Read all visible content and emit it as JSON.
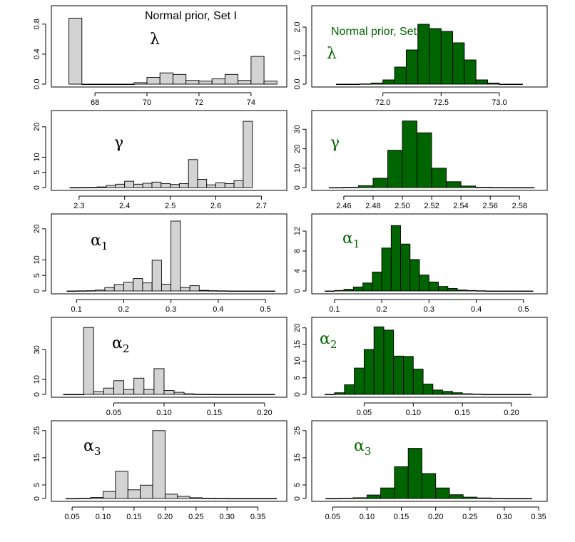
{
  "chart_data": [
    {
      "type": "bar",
      "title": "Normal prior, Set I",
      "label": "λ",
      "label_sub": "",
      "fill": "#d3d3d3",
      "label_color": "#000000",
      "xlim": [
        66.6,
        75.1
      ],
      "ylim": [
        0,
        0.95
      ],
      "xticks": [
        68,
        70,
        72,
        74
      ],
      "xtick_labels": [
        "68",
        "70",
        "72",
        "74"
      ],
      "yticks": [
        0.0,
        0.4,
        0.8
      ],
      "ytick_labels": [
        "0.0",
        "0.4",
        "0.8"
      ],
      "bins": [
        [
          67.0,
          67.5,
          0.88
        ],
        [
          67.5,
          68.0,
          0.0
        ],
        [
          68.0,
          68.5,
          0.0
        ],
        [
          68.5,
          69.0,
          0.0
        ],
        [
          69.0,
          69.5,
          0.0
        ],
        [
          69.5,
          70.0,
          0.02
        ],
        [
          70.0,
          70.5,
          0.09
        ],
        [
          70.5,
          71.0,
          0.15
        ],
        [
          71.0,
          71.5,
          0.13
        ],
        [
          71.5,
          72.0,
          0.05
        ],
        [
          72.0,
          72.5,
          0.04
        ],
        [
          72.5,
          73.0,
          0.07
        ],
        [
          73.0,
          73.5,
          0.13
        ],
        [
          73.5,
          74.0,
          0.05
        ],
        [
          74.0,
          74.5,
          0.37
        ],
        [
          74.5,
          75.0,
          0.04
        ]
      ]
    },
    {
      "type": "bar",
      "title": "Normal prior, Set II",
      "label": "λ",
      "label_sub": "",
      "fill": "#006400",
      "label_color": "#006400",
      "xlim": [
        71.45,
        73.35
      ],
      "ylim": [
        0,
        2.5
      ],
      "xticks": [
        72.0,
        72.5,
        73.0
      ],
      "xtick_labels": [
        "72.0",
        "72.5",
        "73.0"
      ],
      "yticks": [
        0.0,
        1.0,
        2.0
      ],
      "ytick_labels": [
        "0.0",
        "1.0",
        "2.0"
      ],
      "bins": [
        [
          71.6,
          71.7,
          0.0
        ],
        [
          71.7,
          71.8,
          0.0
        ],
        [
          71.8,
          71.9,
          0.01
        ],
        [
          71.9,
          72.0,
          0.04
        ],
        [
          72.0,
          72.1,
          0.15
        ],
        [
          72.1,
          72.2,
          0.6
        ],
        [
          72.2,
          72.3,
          1.2
        ],
        [
          72.3,
          72.4,
          2.1
        ],
        [
          72.4,
          72.5,
          1.95
        ],
        [
          72.5,
          72.6,
          1.85
        ],
        [
          72.6,
          72.7,
          1.45
        ],
        [
          72.7,
          72.8,
          0.85
        ],
        [
          72.8,
          72.9,
          0.15
        ],
        [
          72.9,
          73.0,
          0.04
        ],
        [
          73.0,
          73.1,
          0.0
        ],
        [
          73.1,
          73.2,
          0.0
        ]
      ]
    },
    {
      "type": "bar",
      "label": "γ",
      "label_sub": "",
      "fill": "#d3d3d3",
      "label_color": "#000000",
      "xlim": [
        2.255,
        2.74
      ],
      "ylim": [
        0,
        23
      ],
      "xticks": [
        2.3,
        2.4,
        2.5,
        2.6,
        2.7
      ],
      "xtick_labels": [
        "2.3",
        "2.4",
        "2.5",
        "2.6",
        "2.7"
      ],
      "yticks": [
        0,
        5,
        10,
        20
      ],
      "ytick_labels": [
        "0",
        "5",
        "10",
        "20"
      ],
      "bins": [
        [
          2.28,
          2.3,
          0.0
        ],
        [
          2.3,
          2.32,
          0.05
        ],
        [
          2.32,
          2.34,
          0.1
        ],
        [
          2.34,
          2.36,
          0.2
        ],
        [
          2.36,
          2.38,
          0.7
        ],
        [
          2.38,
          2.4,
          1.1
        ],
        [
          2.4,
          2.42,
          2.1
        ],
        [
          2.42,
          2.44,
          1.1
        ],
        [
          2.44,
          2.46,
          1.4
        ],
        [
          2.46,
          2.48,
          1.8
        ],
        [
          2.48,
          2.5,
          1.3
        ],
        [
          2.5,
          2.52,
          1.0
        ],
        [
          2.52,
          2.54,
          1.3
        ],
        [
          2.54,
          2.56,
          9.2
        ],
        [
          2.56,
          2.58,
          2.7
        ],
        [
          2.58,
          2.6,
          0.9
        ],
        [
          2.6,
          2.62,
          1.6
        ],
        [
          2.62,
          2.64,
          1.3
        ],
        [
          2.64,
          2.66,
          2.3
        ],
        [
          2.66,
          2.68,
          21.8
        ]
      ]
    },
    {
      "type": "bar",
      "label": "γ",
      "label_sub": "",
      "fill": "#006400",
      "label_color": "#006400",
      "xlim": [
        2.443,
        2.594
      ],
      "ylim": [
        0,
        36
      ],
      "xticks": [
        2.46,
        2.48,
        2.5,
        2.52,
        2.54,
        2.56,
        2.58
      ],
      "xtick_labels": [
        "2.46",
        "2.48",
        "2.50",
        "2.52",
        "2.54",
        "2.56",
        "2.58"
      ],
      "yticks": [
        0,
        10,
        20,
        30
      ],
      "ytick_labels": [
        "0",
        "10",
        "20",
        "30"
      ],
      "bins": [
        [
          2.45,
          2.46,
          0.0
        ],
        [
          2.46,
          2.47,
          0.2
        ],
        [
          2.47,
          2.48,
          1.0
        ],
        [
          2.48,
          2.49,
          4.8
        ],
        [
          2.49,
          2.5,
          19.2
        ],
        [
          2.5,
          2.51,
          34.3
        ],
        [
          2.51,
          2.52,
          28.2
        ],
        [
          2.52,
          2.53,
          10.0
        ],
        [
          2.53,
          2.54,
          3.0
        ],
        [
          2.54,
          2.55,
          0.8
        ],
        [
          2.55,
          2.56,
          0.2
        ],
        [
          2.56,
          2.57,
          0.05
        ],
        [
          2.57,
          2.58,
          0.0
        ],
        [
          2.58,
          2.59,
          0.0
        ]
      ]
    },
    {
      "type": "bar",
      "label": "α",
      "label_sub": "1",
      "fill": "#d3d3d3",
      "label_color": "#000000",
      "xlim": [
        0.062,
        0.53
      ],
      "ylim": [
        0,
        22.5
      ],
      "xticks": [
        0.1,
        0.2,
        0.3,
        0.4,
        0.5
      ],
      "xtick_labels": [
        "0.1",
        "0.2",
        "0.3",
        "0.4",
        "0.5"
      ],
      "yticks": [
        0,
        5,
        10,
        20
      ],
      "ytick_labels": [
        "0",
        "5",
        "10",
        "20"
      ],
      "bins": [
        [
          0.08,
          0.1,
          0.0
        ],
        [
          0.1,
          0.12,
          0.05
        ],
        [
          0.12,
          0.14,
          0.1
        ],
        [
          0.14,
          0.16,
          0.3
        ],
        [
          0.16,
          0.18,
          1.1
        ],
        [
          0.18,
          0.2,
          2.1
        ],
        [
          0.2,
          0.22,
          2.8
        ],
        [
          0.22,
          0.24,
          4.0
        ],
        [
          0.24,
          0.26,
          2.6
        ],
        [
          0.26,
          0.28,
          9.9
        ],
        [
          0.28,
          0.3,
          2.2
        ],
        [
          0.3,
          0.32,
          22.5
        ],
        [
          0.32,
          0.34,
          1.1
        ],
        [
          0.34,
          0.36,
          1.7
        ],
        [
          0.36,
          0.38,
          0.2
        ],
        [
          0.38,
          0.4,
          0.1
        ],
        [
          0.4,
          0.42,
          0.05
        ],
        [
          0.42,
          0.44,
          0.0
        ],
        [
          0.44,
          0.46,
          0.0
        ],
        [
          0.46,
          0.48,
          0.0
        ],
        [
          0.48,
          0.5,
          0.0
        ],
        [
          0.5,
          0.52,
          0.0
        ]
      ]
    },
    {
      "type": "bar",
      "label": "α",
      "label_sub": "1",
      "fill": "#006400",
      "label_color": "#006400",
      "xlim": [
        0.067,
        0.535
      ],
      "ylim": [
        0,
        14
      ],
      "xticks": [
        0.1,
        0.2,
        0.3,
        0.4,
        0.5
      ],
      "xtick_labels": [
        "0.1",
        "0.2",
        "0.3",
        "0.4",
        "0.5"
      ],
      "yticks": [
        0,
        4,
        8,
        12
      ],
      "ytick_labels": [
        "0",
        "4",
        "8",
        "12"
      ],
      "bins": [
        [
          0.08,
          0.1,
          0.0
        ],
        [
          0.1,
          0.12,
          0.1
        ],
        [
          0.12,
          0.14,
          0.35
        ],
        [
          0.14,
          0.16,
          0.8
        ],
        [
          0.16,
          0.18,
          1.6
        ],
        [
          0.18,
          0.2,
          3.8
        ],
        [
          0.2,
          0.22,
          8.6
        ],
        [
          0.22,
          0.24,
          13.1
        ],
        [
          0.24,
          0.26,
          9.4
        ],
        [
          0.26,
          0.28,
          6.3
        ],
        [
          0.28,
          0.3,
          3.2
        ],
        [
          0.3,
          0.32,
          1.8
        ],
        [
          0.32,
          0.34,
          0.9
        ],
        [
          0.34,
          0.36,
          0.5
        ],
        [
          0.36,
          0.38,
          0.2
        ],
        [
          0.38,
          0.4,
          0.1
        ],
        [
          0.4,
          0.42,
          0.05
        ],
        [
          0.42,
          0.44,
          0.0
        ],
        [
          0.44,
          0.46,
          0.0
        ],
        [
          0.46,
          0.48,
          0.0
        ],
        [
          0.48,
          0.5,
          0.0
        ],
        [
          0.5,
          0.52,
          0.0
        ]
      ]
    },
    {
      "type": "bar",
      "label": "α",
      "label_sub": "2",
      "fill": "#d3d3d3",
      "label_color": "#000000",
      "xlim": [
        -0.005,
        0.215
      ],
      "ylim": [
        0,
        47
      ],
      "xticks": [
        0.05,
        0.1,
        0.15,
        0.2
      ],
      "xtick_labels": [
        "0.05",
        "0.10",
        "0.15",
        "0.20"
      ],
      "yticks": [
        0,
        10,
        30
      ],
      "ytick_labels": [
        "0",
        "10",
        "30"
      ],
      "bins": [
        [
          0.0,
          0.01,
          0.0
        ],
        [
          0.01,
          0.02,
          0.0
        ],
        [
          0.02,
          0.03,
          45.0
        ],
        [
          0.03,
          0.04,
          1.9
        ],
        [
          0.04,
          0.05,
          4.2
        ],
        [
          0.05,
          0.06,
          9.2
        ],
        [
          0.06,
          0.07,
          3.3
        ],
        [
          0.07,
          0.08,
          10.9
        ],
        [
          0.08,
          0.09,
          3.3
        ],
        [
          0.09,
          0.1,
          17.3
        ],
        [
          0.1,
          0.11,
          2.6
        ],
        [
          0.11,
          0.12,
          1.4
        ],
        [
          0.12,
          0.13,
          0.4
        ],
        [
          0.13,
          0.14,
          0.1
        ],
        [
          0.14,
          0.15,
          0.05
        ],
        [
          0.15,
          0.16,
          0.0
        ],
        [
          0.16,
          0.17,
          0.0
        ],
        [
          0.17,
          0.18,
          0.0
        ],
        [
          0.18,
          0.19,
          0.0
        ],
        [
          0.19,
          0.2,
          0.0
        ],
        [
          0.2,
          0.21,
          0.0
        ]
      ]
    },
    {
      "type": "bar",
      "label": "α",
      "label_sub": "2",
      "fill": "#006400",
      "label_color": "#006400",
      "xlim": [
        0.004,
        0.229
      ],
      "ylim": [
        0,
        21
      ],
      "xticks": [
        0.05,
        0.1,
        0.15,
        0.2
      ],
      "xtick_labels": [
        "0.05",
        "0.10",
        "0.15",
        "0.20"
      ],
      "yticks": [
        0,
        5,
        10,
        15,
        20
      ],
      "ytick_labels": [
        "0",
        "5",
        "10",
        "15",
        "20"
      ],
      "bins": [
        [
          0.01,
          0.02,
          0.0
        ],
        [
          0.02,
          0.03,
          0.5
        ],
        [
          0.03,
          0.04,
          2.9
        ],
        [
          0.04,
          0.05,
          7.9
        ],
        [
          0.05,
          0.06,
          13.5
        ],
        [
          0.06,
          0.07,
          20.3
        ],
        [
          0.07,
          0.08,
          19.3
        ],
        [
          0.08,
          0.09,
          11.5
        ],
        [
          0.09,
          0.1,
          11.4
        ],
        [
          0.1,
          0.11,
          7.6
        ],
        [
          0.11,
          0.12,
          3.1
        ],
        [
          0.12,
          0.13,
          1.3
        ],
        [
          0.13,
          0.14,
          0.9
        ],
        [
          0.14,
          0.15,
          0.5
        ],
        [
          0.15,
          0.16,
          0.2
        ],
        [
          0.16,
          0.17,
          0.1
        ],
        [
          0.17,
          0.18,
          0.0
        ],
        [
          0.18,
          0.19,
          0.0
        ],
        [
          0.19,
          0.2,
          0.0
        ],
        [
          0.2,
          0.21,
          0.0
        ],
        [
          0.21,
          0.22,
          0.0
        ]
      ]
    },
    {
      "type": "bar",
      "label": "α",
      "label_sub": "3",
      "fill": "#d3d3d3",
      "label_color": "#000000",
      "xlim": [
        0.028,
        0.385
      ],
      "ylim": [
        0,
        26
      ],
      "xticks": [
        0.05,
        0.1,
        0.15,
        0.2,
        0.25,
        0.3,
        0.35
      ],
      "xtick_labels": [
        "0.05",
        "0.10",
        "0.15",
        "0.20",
        "0.25",
        "0.30",
        "0.35"
      ],
      "yticks": [
        0,
        5,
        15,
        25
      ],
      "ytick_labels": [
        "0",
        "5",
        "15",
        "25"
      ],
      "bins": [
        [
          0.04,
          0.06,
          0.0
        ],
        [
          0.06,
          0.08,
          0.1
        ],
        [
          0.08,
          0.1,
          0.4
        ],
        [
          0.1,
          0.12,
          2.6
        ],
        [
          0.12,
          0.14,
          10.0
        ],
        [
          0.14,
          0.16,
          3.2
        ],
        [
          0.16,
          0.18,
          4.9
        ],
        [
          0.18,
          0.2,
          25.0
        ],
        [
          0.2,
          0.22,
          1.6
        ],
        [
          0.22,
          0.24,
          0.8
        ],
        [
          0.24,
          0.26,
          0.3
        ],
        [
          0.26,
          0.28,
          0.1
        ],
        [
          0.28,
          0.3,
          0.05
        ],
        [
          0.3,
          0.32,
          0.0
        ],
        [
          0.32,
          0.34,
          0.0
        ],
        [
          0.34,
          0.36,
          0.0
        ],
        [
          0.36,
          0.38,
          0.0
        ]
      ]
    },
    {
      "type": "bar",
      "label": "α",
      "label_sub": "3",
      "fill": "#006400",
      "label_color": "#006400",
      "xlim": [
        0.03,
        0.352
      ],
      "ylim": [
        0,
        26
      ],
      "xticks": [
        0.05,
        0.1,
        0.15,
        0.2,
        0.25,
        0.3,
        0.35
      ],
      "xtick_labels": [
        "0.05",
        "0.10",
        "0.15",
        "0.20",
        "0.25",
        "0.30",
        "0.35"
      ],
      "yticks": [
        0,
        5,
        15,
        25
      ],
      "ytick_labels": [
        "0",
        "5",
        "15",
        "25"
      ],
      "bins": [
        [
          0.04,
          0.06,
          0.0
        ],
        [
          0.06,
          0.08,
          0.1
        ],
        [
          0.08,
          0.1,
          0.3
        ],
        [
          0.1,
          0.12,
          1.3
        ],
        [
          0.12,
          0.14,
          3.9
        ],
        [
          0.14,
          0.16,
          11.7
        ],
        [
          0.16,
          0.18,
          18.5
        ],
        [
          0.18,
          0.2,
          9.2
        ],
        [
          0.2,
          0.22,
          3.9
        ],
        [
          0.22,
          0.24,
          1.4
        ],
        [
          0.24,
          0.26,
          0.5
        ],
        [
          0.26,
          0.28,
          0.2
        ],
        [
          0.28,
          0.3,
          0.05
        ],
        [
          0.3,
          0.32,
          0.0
        ],
        [
          0.32,
          0.34,
          0.0
        ]
      ]
    }
  ]
}
